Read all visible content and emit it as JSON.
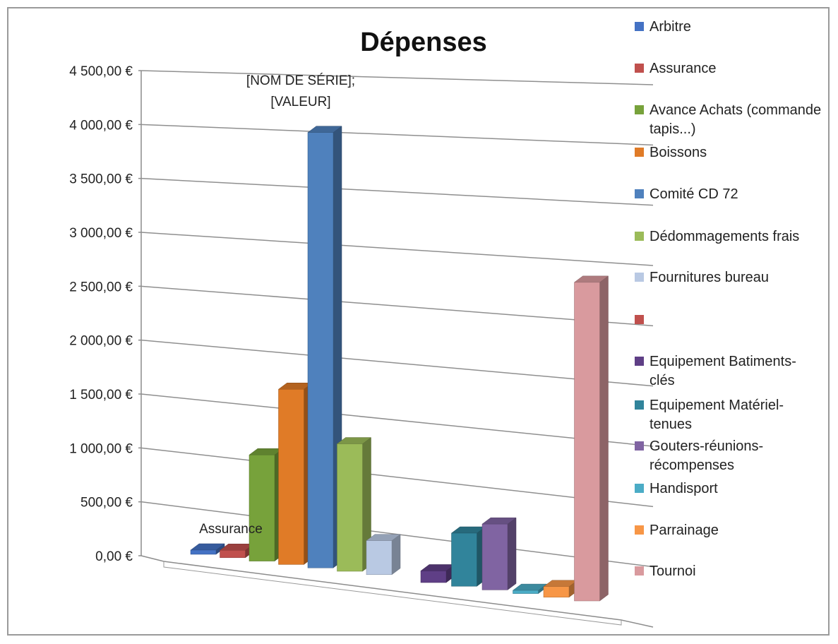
{
  "chart_data": {
    "type": "bar",
    "title": "Dépenses",
    "y_tick_labels": [
      "0,00 €",
      "500,00 €",
      "1 000,00 €",
      "1 500,00 €",
      "2 000,00 €",
      "2 500,00 €",
      "3 000,00 €",
      "3 500,00 €",
      "4 000,00 €",
      "4 500,00 €"
    ],
    "ylim": [
      0,
      4500
    ],
    "grid": true,
    "legend_position": "right",
    "annotations": [
      "Assurance",
      "[NOM DE SÉRIE];",
      "[VALEUR]"
    ],
    "series": [
      {
        "name": "Arbitre",
        "color": "#4472C4",
        "values": [
          40,
          0
        ]
      },
      {
        "name": "Assurance",
        "color": "#C0504D",
        "values": [
          70,
          0
        ]
      },
      {
        "name": "Avance Achats (commande tapis...)",
        "color": "#77A23B",
        "values": [
          1000,
          0
        ]
      },
      {
        "name": "Boissons",
        "color": "#E07B27",
        "values": [
          1650,
          0
        ]
      },
      {
        "name": "Comité CD 72",
        "color": "#4F81BD",
        "values": [
          4100,
          0
        ]
      },
      {
        "name": "Dédommagements frais",
        "color": "#9BBB59",
        "values": [
          1200,
          0
        ]
      },
      {
        "name": "Fournitures bureau",
        "color": "#B9C9E3",
        "values": [
          320,
          0
        ]
      },
      {
        "name": "",
        "color": "#C0504D",
        "values": [
          0,
          0
        ]
      },
      {
        "name": "Equipement Batiments-clés",
        "color": "#5F3F86",
        "values": [
          0,
          110
        ]
      },
      {
        "name": "Equipement Matériel-tenues",
        "color": "#31849B",
        "values": [
          0,
          500
        ]
      },
      {
        "name": "Gouters-réunions-récompenses",
        "color": "#8064A2",
        "values": [
          0,
          620
        ]
      },
      {
        "name": "Handisport",
        "color": "#4BACC6",
        "values": [
          0,
          30
        ]
      },
      {
        "name": "Parrainage",
        "color": "#F79646",
        "values": [
          0,
          100
        ]
      },
      {
        "name": "Tournoi",
        "color": "#D99A9E",
        "values": [
          0,
          3000
        ]
      }
    ]
  }
}
